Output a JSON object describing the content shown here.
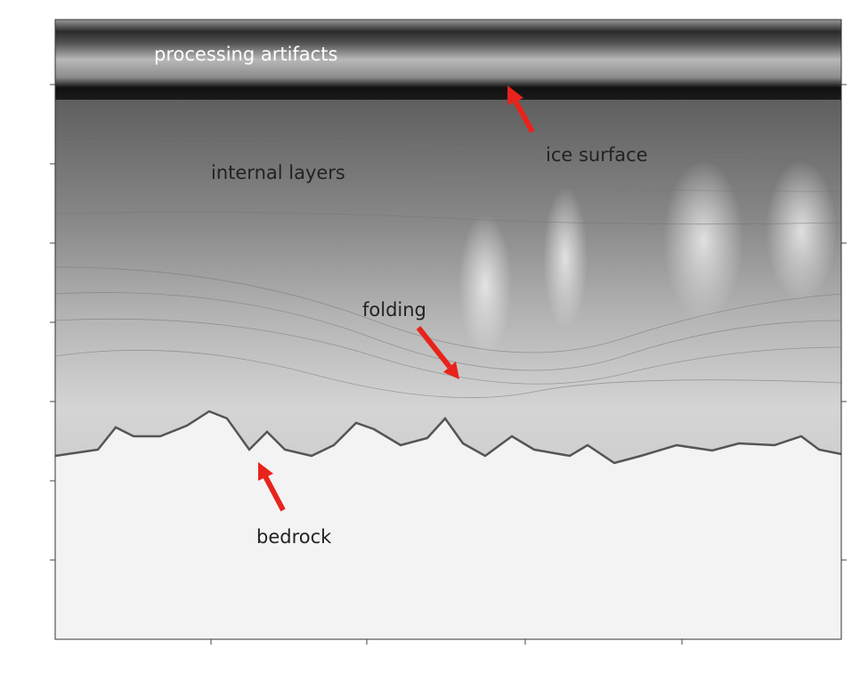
{
  "annotations": [
    {
      "text": "processing artifacts"
    },
    {
      "text": "ice surface"
    },
    {
      "text": "internal layers"
    },
    {
      "text": "folding"
    },
    {
      "text": "bedrock"
    }
  ]
}
